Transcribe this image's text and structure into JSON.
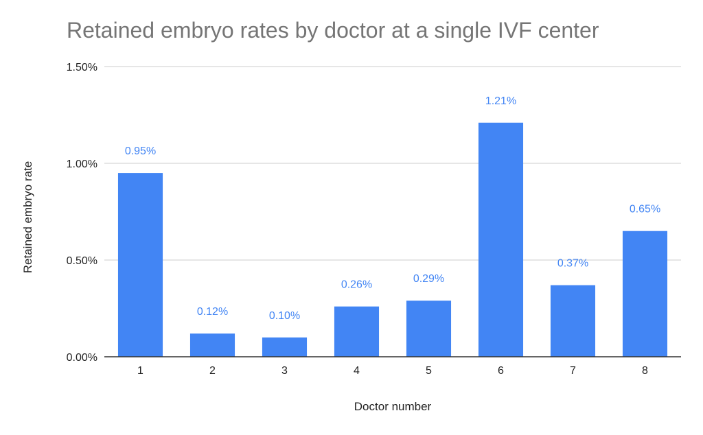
{
  "chart_data": {
    "type": "bar",
    "title": "Retained embryo rates by doctor at a single IVF center",
    "xlabel": "Doctor number",
    "ylabel": "Retained embryo rate",
    "categories": [
      "1",
      "2",
      "3",
      "4",
      "5",
      "6",
      "7",
      "8"
    ],
    "values": [
      0.95,
      0.12,
      0.1,
      0.26,
      0.29,
      1.21,
      0.37,
      0.65
    ],
    "data_labels": [
      "0.95%",
      "0.12%",
      "0.10%",
      "0.26%",
      "0.29%",
      "1.21%",
      "0.37%",
      "0.65%"
    ],
    "y_ticks": [
      0,
      0.5,
      1.0,
      1.5
    ],
    "y_tick_labels": [
      "0.00%",
      "0.50%",
      "1.00%",
      "1.50%"
    ],
    "ylim": [
      0,
      1.5
    ],
    "grid": true,
    "legend": "none",
    "colors": {
      "bar": "#4285f4",
      "label": "#4285f4",
      "grid": "#cccccc",
      "axis": "#333333",
      "title": "#757575"
    }
  }
}
